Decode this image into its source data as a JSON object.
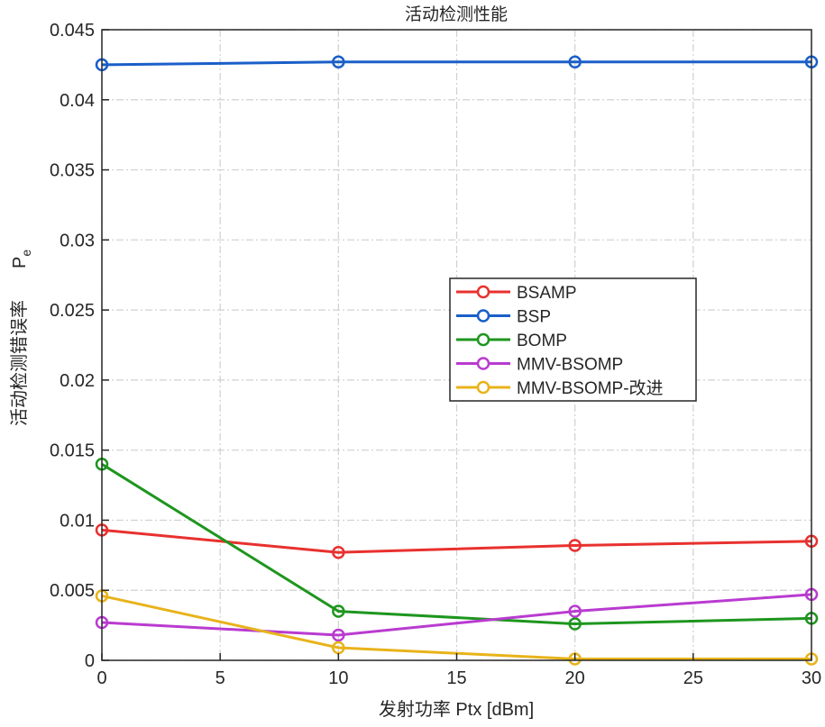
{
  "chart_data": {
    "type": "line",
    "title": "活动检测性能",
    "xlabel": "发射功率 Ptx [dBm]",
    "ylabel": "活动检测错误率",
    "ylabel_symbol": "P",
    "ylabel_subscript": "e",
    "xlim": [
      0,
      30
    ],
    "ylim": [
      0,
      0.045
    ],
    "xticks": [
      0,
      5,
      10,
      15,
      20,
      25,
      30
    ],
    "xtick_labels": [
      "0",
      "5",
      "10",
      "15",
      "20",
      "25",
      "30"
    ],
    "yticks": [
      0,
      0.005,
      0.01,
      0.015,
      0.02,
      0.025,
      0.03,
      0.035,
      0.04,
      0.045
    ],
    "ytick_labels": [
      "0",
      "0.005",
      "0.01",
      "0.015",
      "0.02",
      "0.025",
      "0.03",
      "0.035",
      "0.04",
      "0.045"
    ],
    "grid": true,
    "legend_position": "center-right",
    "x": [
      0,
      10,
      20,
      30
    ],
    "series": [
      {
        "name": "BSAMP",
        "color": "#e8312f",
        "values": [
          0.0093,
          0.0077,
          0.0082,
          0.0085
        ]
      },
      {
        "name": "BSP",
        "color": "#1a5fc8",
        "values": [
          0.0425,
          0.0427,
          0.0427,
          0.0427
        ]
      },
      {
        "name": "BOMP",
        "color": "#1e961e",
        "values": [
          0.014,
          0.0035,
          0.0026,
          0.003
        ]
      },
      {
        "name": "MMV-BSOMP",
        "color": "#b93bd0",
        "values": [
          0.0027,
          0.0018,
          0.0035,
          0.0047
        ]
      },
      {
        "name": "MMV-BSOMP-改进",
        "color": "#e8b31a",
        "values": [
          0.0046,
          0.0009,
          0.0001,
          0.0001
        ]
      }
    ],
    "marker": "circle"
  }
}
